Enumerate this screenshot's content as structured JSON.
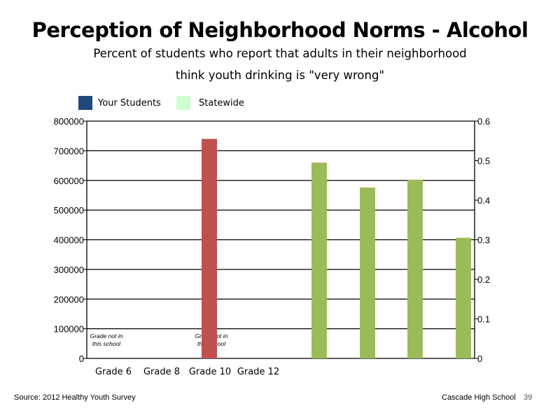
{
  "page": {
    "title": "Perception of Neighborhood Norms - Alcohol",
    "subtitle_line1": "Percent of students who report that adults in their neighborhood",
    "subtitle_line2": "think youth drinking is \"very wrong\"",
    "source": "Source: 2012 Healthy Youth Survey",
    "school": "Cascade High School",
    "page_number": "39"
  },
  "chart_data": {
    "type": "bar",
    "legend": [
      {
        "label": "Your Students",
        "color": "#1F497D"
      },
      {
        "label": "Statewide",
        "color": "#CCFFCC"
      }
    ],
    "legend_position": "top-left",
    "categories": [
      "Grade 6",
      "Grade 8",
      "Grade 10",
      "Grade 12"
    ],
    "y_left": {
      "min": 0,
      "max": 800000,
      "ticks": [
        "0",
        "100000",
        "200000",
        "300000",
        "400000",
        "500000",
        "600000",
        "700000",
        "800000"
      ]
    },
    "y_right": {
      "min": 0,
      "max": 0.6,
      "ticks": [
        "0",
        "0.1",
        "0.2",
        "0.3",
        "0.4",
        "0.5",
        "0.6"
      ]
    },
    "grid": true,
    "red_bar": {
      "color": "#C0504D",
      "axis": "left",
      "value": 740000
    },
    "green_bars": {
      "color": "#9BBB59",
      "axis": "right",
      "values": [
        0.495,
        0.432,
        0.452,
        0.305
      ]
    },
    "annotations": [
      {
        "line1": "Grade not in",
        "line2": "this school"
      },
      {
        "line1": "Grade not in",
        "line2": "this school"
      }
    ]
  }
}
